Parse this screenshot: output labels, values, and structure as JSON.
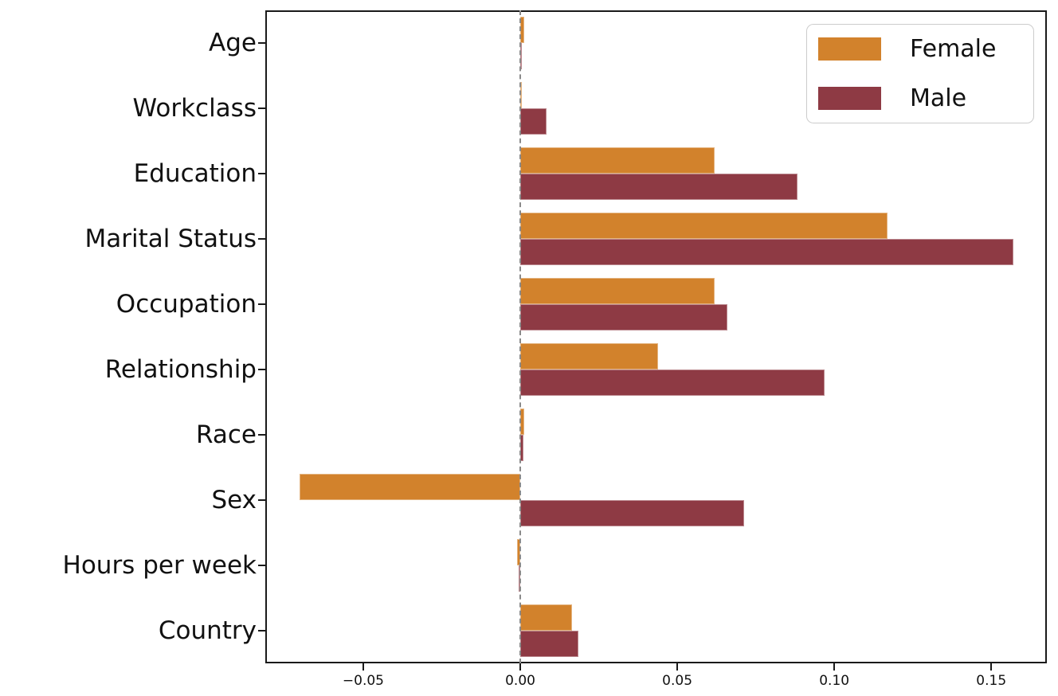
{
  "chart_data": {
    "type": "bar",
    "orientation": "horizontal",
    "title": "",
    "xlabel": "",
    "ylabel": "",
    "categories": [
      "Age",
      "Workclass",
      "Education",
      "Marital Status",
      "Occupation",
      "Relationship",
      "Race",
      "Sex",
      "Hours per week",
      "Country"
    ],
    "series": [
      {
        "name": "Female",
        "color": "#d2822c",
        "values": [
          0.0013,
          0.0003,
          0.062,
          0.117,
          0.062,
          0.044,
          0.0012,
          -0.0703,
          -0.0011,
          0.0164
        ]
      },
      {
        "name": "Male",
        "color": "#8e3a44",
        "values": [
          0.0005,
          0.0083,
          0.0883,
          0.157,
          0.0659,
          0.097,
          0.001,
          0.0713,
          -0.0005,
          0.0185
        ]
      }
    ],
    "xlim": [
      -0.0812,
      0.1677
    ],
    "xticks": [
      -0.05,
      0.0,
      0.05,
      0.1,
      0.15
    ],
    "xtick_labels": [
      "−0.05",
      "0.00",
      "0.05",
      "0.10",
      "0.15"
    ],
    "grid": false,
    "zero_line": {
      "x": 0,
      "style": "dashed",
      "color": "#8a8a8a"
    },
    "legend": {
      "position": "upper right",
      "entries": [
        {
          "label": "Female",
          "color": "#d2822c"
        },
        {
          "label": "Male",
          "color": "#8e3a44"
        }
      ]
    },
    "colors": {
      "background": "#ffffff",
      "spine": "#1a1a1a",
      "text": "#111111",
      "legend_border": "#cccccc"
    }
  }
}
